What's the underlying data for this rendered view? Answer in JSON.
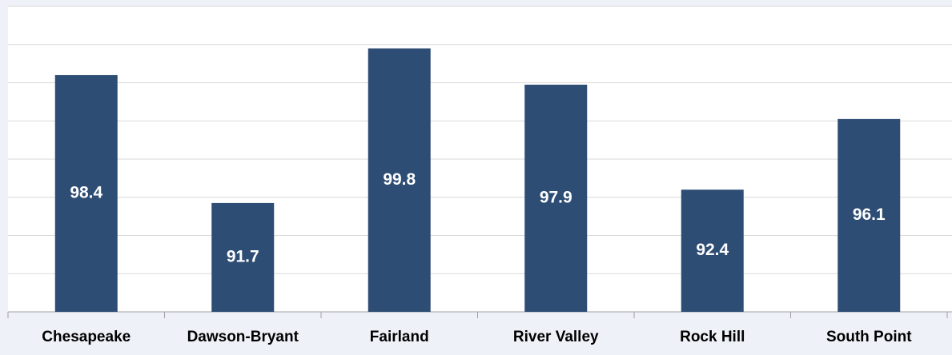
{
  "chart_data": {
    "type": "bar",
    "categories": [
      "Chesapeake",
      "Dawson-Bryant",
      "Fairland",
      "River Valley",
      "Rock Hill",
      "South Point"
    ],
    "values": [
      98.4,
      91.7,
      99.8,
      97.9,
      92.4,
      96.1
    ],
    "color": "#2e4d74",
    "ylim": [
      86,
      102
    ],
    "yticks": [
      86,
      88,
      90,
      92,
      94,
      96,
      98,
      100,
      102
    ],
    "grid": true
  }
}
